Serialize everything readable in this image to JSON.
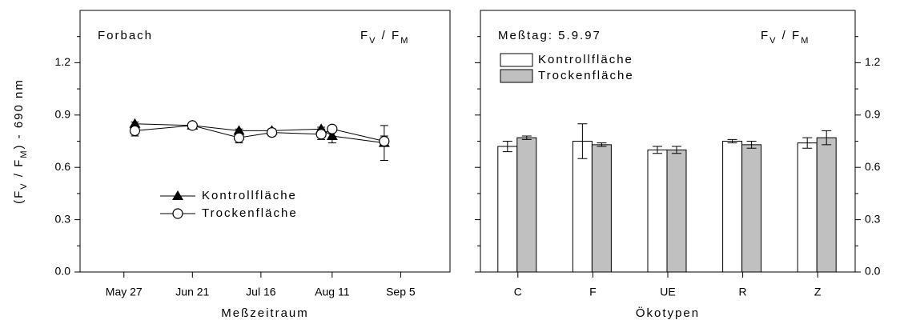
{
  "chart_data": [
    {
      "type": "line",
      "annotation": "Forbach",
      "ratio_label": [
        "F",
        "V",
        " / F",
        "M"
      ],
      "ylabel": [
        "(F",
        "V",
        " / F",
        "M",
        ") - 690 nm"
      ],
      "xlabel": "Meßzeitraum",
      "x": [
        "05-31",
        "06-21",
        "07-08",
        "07-20",
        "08-07",
        "08-11",
        "08-30"
      ],
      "series": [
        {
          "name": "Kontrollfläche",
          "marker": "triangle",
          "color": "#000000",
          "values": [
            0.85,
            0.84,
            0.81,
            0.81,
            0.82,
            0.78,
            0.74
          ],
          "errors": [
            0.01,
            0.01,
            0.01,
            0.01,
            0.01,
            0.04,
            0.1
          ]
        },
        {
          "name": "Trockenfläche",
          "marker": "circle",
          "color": "#000000",
          "values": [
            0.81,
            0.84,
            0.77,
            0.8,
            0.79,
            0.82,
            0.75
          ],
          "errors": [
            0.03,
            0.01,
            0.03,
            0.02,
            0.03,
            0.01,
            0.03
          ]
        }
      ],
      "xlim": [
        "05-11",
        "09-23"
      ],
      "xticks": [
        {
          "value": "05-27",
          "label": "May 27"
        },
        {
          "value": "06-21",
          "label": "Jun 21"
        },
        {
          "value": "07-16",
          "label": "Jul 16"
        },
        {
          "value": "08-11",
          "label": "Aug 11"
        },
        {
          "value": "09-05",
          "label": "Sep 5"
        }
      ],
      "ylim": [
        0,
        1.5
      ],
      "yticks": [
        {
          "value": 0,
          "label": "0.0"
        },
        0.3,
        0.6,
        0.9,
        1.2
      ],
      "minor_yticks": [
        0.15,
        0.45,
        0.75,
        1.05,
        1.35
      ],
      "legend": "lower center",
      "yaxis": "left"
    },
    {
      "type": "bar",
      "annotation": "Meßtag:  5.9.97",
      "ratio_label": [
        "F",
        "V",
        " / F",
        "M"
      ],
      "xlabel": "Ökotypen",
      "categories": [
        "C",
        "F",
        "UE",
        "R",
        "Z"
      ],
      "series": [
        {
          "name": "Kontrollfläche",
          "color": "#ffffff",
          "values": [
            0.72,
            0.75,
            0.7,
            0.75,
            0.74
          ],
          "errors": [
            0.03,
            0.1,
            0.02,
            0.01,
            0.03
          ]
        },
        {
          "name": "Trockenfläche",
          "color": "#c0c0c0",
          "values": [
            0.77,
            0.73,
            0.7,
            0.73,
            0.77
          ],
          "errors": [
            0.01,
            0.01,
            0.02,
            0.02,
            0.04
          ]
        }
      ],
      "ylim": [
        0,
        1.5
      ],
      "yticks": [
        {
          "value": 0,
          "label": "0.0"
        },
        0.3,
        0.6,
        0.9,
        1.2
      ],
      "minor_yticks": [
        0.15,
        0.45,
        0.75,
        1.05,
        1.35
      ],
      "legend": "upper left",
      "yaxis": "right"
    }
  ]
}
